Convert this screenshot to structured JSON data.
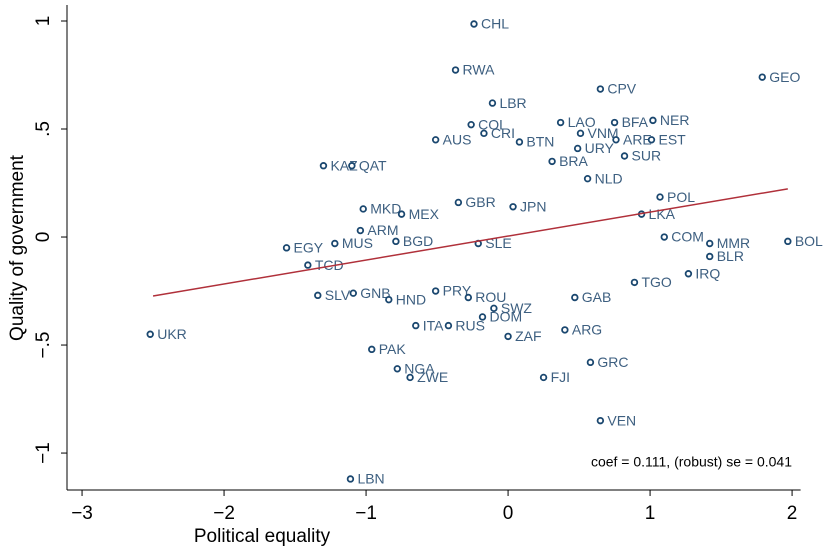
{
  "chart_data": {
    "type": "scatter",
    "x_label": "Political equality",
    "y_label": "Quality of government",
    "annotation": "coef = 0.111, (robust) se = 0.041",
    "xlim": [
      -3.106,
      2.06
    ],
    "ylim": [
      -1.171,
      1.074
    ],
    "xticks": [
      {
        "value": -3,
        "label": "−3"
      },
      {
        "value": -2,
        "label": "−2"
      },
      {
        "value": -1,
        "label": "−1"
      },
      0,
      1,
      2
    ],
    "yticks": [
      {
        "value": -1,
        "label": "−1"
      },
      {
        "value": -0.5,
        "label": "−.5"
      },
      0,
      {
        "value": 0.5,
        "label": ".5"
      },
      1
    ],
    "color": "#1a476f",
    "label_color": "#3d5f80",
    "fit": {
      "x": [
        -2.5,
        1.97
      ],
      "y": [
        -0.273,
        0.223
      ],
      "color": "#b0303a"
    },
    "labels": [
      "CHL",
      "RWA",
      "LBR",
      "CPV",
      "GEO",
      "COL",
      "CRI",
      "AUS",
      "LAO",
      "BFA",
      "NER",
      "VNM",
      "ARE",
      "EST",
      "BTN",
      "URY",
      "SUR",
      "KAZ",
      "QAT",
      "BRA",
      "NLD",
      "POL",
      "MKD",
      "MEX",
      "GBR",
      "JPN",
      "LKA",
      "COM",
      "EGY",
      "MUS",
      "ARM",
      "BGD",
      "SLE",
      "MMR",
      "BOL",
      "BLR",
      "TCD",
      "IRQ",
      "TGO",
      "SLV",
      "GNB",
      "HND",
      "PRY",
      "GAB",
      "UKR",
      "ROU",
      "SWZ",
      "DOM",
      "ITA",
      "RUS",
      "ARG",
      "ZAF",
      "PAK",
      "GRC",
      "NGA",
      "ZWE",
      "FJI",
      "VEN",
      "LBN"
    ],
    "x": [
      -0.24,
      -0.37,
      -0.11,
      0.65,
      1.79,
      -0.26,
      -0.17,
      -0.51,
      0.37,
      0.75,
      1.02,
      0.51,
      0.76,
      1.01,
      0.08,
      0.49,
      0.82,
      -1.3,
      -1.1,
      0.31,
      0.56,
      1.07,
      -1.02,
      -0.75,
      -0.35,
      0.035,
      0.94,
      1.1,
      -1.56,
      -1.22,
      -1.04,
      -0.79,
      -0.21,
      1.42,
      1.97,
      1.42,
      -1.41,
      1.27,
      0.89,
      -1.34,
      -1.09,
      -0.84,
      -0.51,
      0.47,
      -2.52,
      -0.28,
      -0.1,
      -0.18,
      -0.65,
      -0.42,
      0.4,
      0.0,
      -0.96,
      0.58,
      -0.78,
      -0.69,
      0.25,
      0.65,
      -1.11
    ],
    "y": [
      0.986,
      0.773,
      0.62,
      0.685,
      0.74,
      0.52,
      0.48,
      0.45,
      0.53,
      0.53,
      0.54,
      0.48,
      0.45,
      0.45,
      0.44,
      0.41,
      0.375,
      0.33,
      0.33,
      0.35,
      0.27,
      0.185,
      0.13,
      0.106,
      0.16,
      0.14,
      0.106,
      0.0,
      -0.05,
      -0.03,
      0.03,
      -0.02,
      -0.03,
      -0.03,
      -0.02,
      -0.09,
      -0.13,
      -0.17,
      -0.21,
      -0.27,
      -0.26,
      -0.29,
      -0.25,
      -0.28,
      -0.45,
      -0.28,
      -0.33,
      -0.37,
      -0.41,
      -0.41,
      -0.43,
      -0.46,
      -0.52,
      -0.58,
      -0.61,
      -0.65,
      -0.65,
      -0.85,
      -1.12
    ]
  }
}
